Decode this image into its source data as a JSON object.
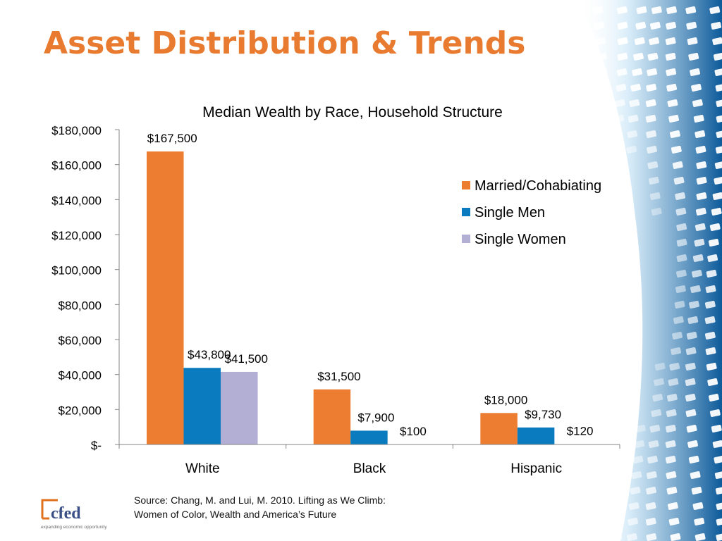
{
  "slide_title": "Asset Distribution & Trends",
  "source": {
    "line1": "Source: Chang, M. and Lui, M. 2010. Lifting as We Climb:",
    "line2": "Women of Color, Wealth and America’s Future"
  },
  "logo": {
    "name": "cfed",
    "tagline": "expanding economic opportunity"
  },
  "colors": {
    "title": "#e87b2f",
    "married": "#ed7d31",
    "single_men": "#0a7bbf",
    "single_women": "#b3aed3"
  },
  "chart_data": {
    "type": "bar",
    "title": "Median Wealth by Race, Household Structure",
    "categories": [
      "White",
      "Black",
      "Hispanic"
    ],
    "series": [
      {
        "name": "Married/Cohabiating",
        "values": [
          167500,
          31500,
          18000
        ],
        "labels": [
          "$167,500",
          "$31,500",
          "$18,000"
        ],
        "color": "#ed7d31"
      },
      {
        "name": "Single Men",
        "values": [
          43800,
          7900,
          9730
        ],
        "labels": [
          "$43,800",
          "$7,900",
          "$9,730"
        ],
        "color": "#0a7bbf"
      },
      {
        "name": "Single Women",
        "values": [
          41500,
          100,
          120
        ],
        "labels": [
          "$41,500",
          "$100",
          "$120"
        ],
        "color": "#b3aed3"
      }
    ],
    "y_ticks": [
      0,
      20000,
      40000,
      60000,
      80000,
      100000,
      120000,
      140000,
      160000,
      180000
    ],
    "y_tick_labels": [
      "$-",
      "$20,000",
      "$40,000",
      "$60,000",
      "$80,000",
      "$100,000",
      "$120,000",
      "$140,000",
      "$160,000",
      "$180,000"
    ],
    "ylim": [
      0,
      180000
    ],
    "xlabel": "",
    "ylabel": "",
    "legend_position": "right",
    "grid": false
  }
}
